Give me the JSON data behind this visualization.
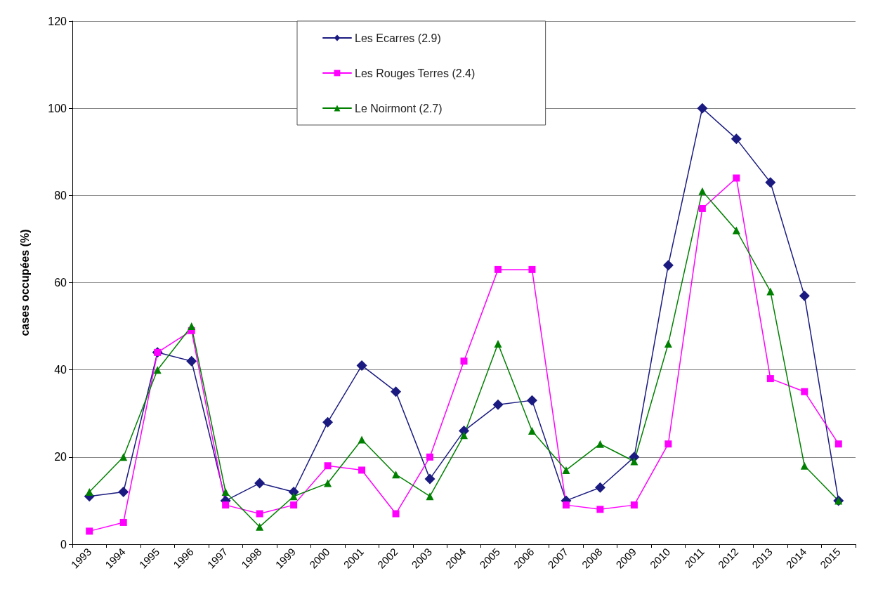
{
  "chart_data": {
    "type": "line",
    "ylabel": "cases occupées (%)",
    "categories": [
      "1993",
      "1994",
      "1995",
      "1996",
      "1997",
      "1998",
      "1999",
      "2000",
      "2001",
      "2002",
      "2003",
      "2004",
      "2005",
      "2006",
      "2007",
      "2008",
      "2009",
      "2010",
      "2011",
      "2012",
      "2013",
      "2014",
      "2015"
    ],
    "series": [
      {
        "name": "Les Ecarres (2.9)",
        "color": "#1a1a80",
        "marker": "diamond",
        "values": [
          11,
          12,
          44,
          42,
          10,
          14,
          12,
          28,
          41,
          35,
          15,
          26,
          32,
          33,
          10,
          13,
          20,
          64,
          100,
          93,
          83,
          57,
          10
        ]
      },
      {
        "name": "Les Rouges Terres (2.4)",
        "color": "#ff00ff",
        "marker": "square",
        "values": [
          3,
          5,
          44,
          49,
          9,
          7,
          9,
          18,
          17,
          7,
          20,
          42,
          63,
          63,
          9,
          8,
          9,
          23,
          77,
          84,
          38,
          35,
          23
        ]
      },
      {
        "name": "Le Noirmont (2.7)",
        "color": "#008000",
        "marker": "triangle",
        "values": [
          12,
          20,
          40,
          50,
          12,
          4,
          11,
          14,
          24,
          16,
          11,
          25,
          46,
          26,
          17,
          23,
          19,
          46,
          81,
          72,
          58,
          18,
          10
        ]
      }
    ],
    "ylim": [
      0,
      120
    ],
    "yticks": [
      0,
      20,
      40,
      60,
      80,
      100,
      120
    ],
    "grid": "y",
    "legend": "top",
    "line_style": "solid"
  }
}
